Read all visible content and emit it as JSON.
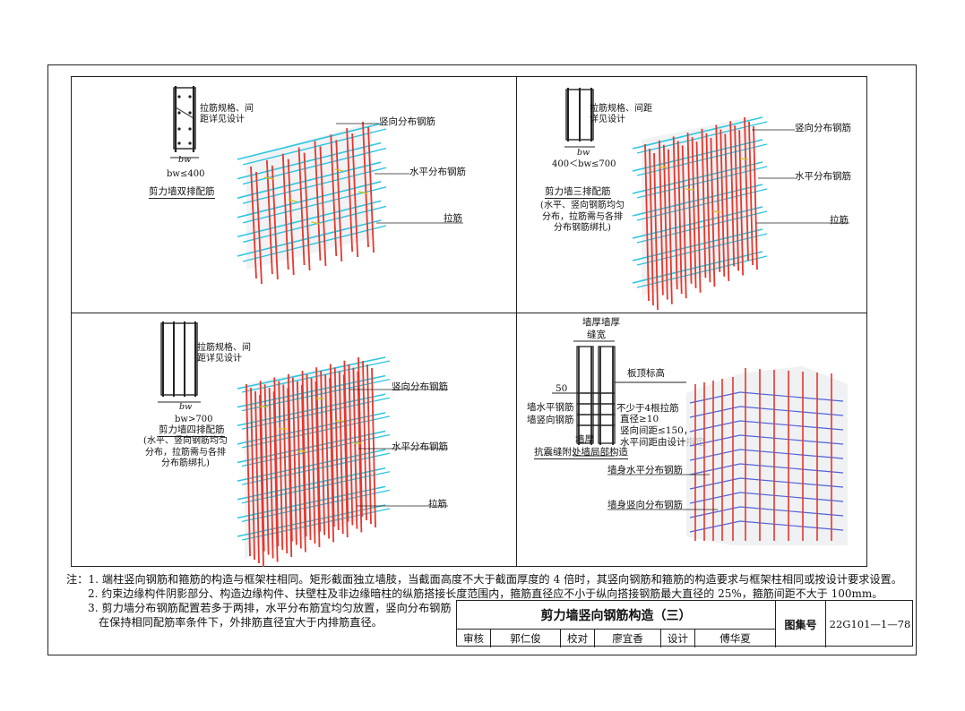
{
  "panels": {
    "p1": {
      "detail_note": "拉筋规格、间距详见设计",
      "width_label": "bw",
      "width_rule": "bw≤400",
      "caption": "剪力墙双排配筋",
      "labels": {
        "vertical": "竖向分布钢筋",
        "horizontal": "水平分布钢筋",
        "tie": "拉筋"
      }
    },
    "p2": {
      "detail_note": "拉筋规格、间距详见设计",
      "width_label": "bw",
      "width_rule": "400＜bw≤700",
      "caption": "剪力墙三排配筋",
      "caption_note": "(水平、竖向钢筋均匀分布，拉筋需与各排分布钢筋绑扎)",
      "labels": {
        "vertical": "竖向分布钢筋",
        "horizontal": "水平分布钢筋",
        "tie": "拉筋"
      }
    },
    "p3": {
      "detail_note": "拉筋规格、间距详见设计",
      "width_label": "bw",
      "width_rule": "bw>700",
      "caption": "剪力墙四排配筋",
      "caption_note": "(水平、竖向钢筋均匀分布，拉筋需与各排分布筋绑扎)",
      "labels": {
        "vertical": "竖向分布钢筋",
        "horizontal": "水平分布钢筋",
        "tie": "拉筋"
      }
    },
    "p4": {
      "thick_a": "墙厚",
      "thick_b": "墙厚",
      "gap": "缝宽",
      "dim_50": "50",
      "slab_top": "板顶标高",
      "wall_h_bar": "墙水平钢筋",
      "wall_v_bar": "墙竖向钢筋",
      "ties_note_1": "不少于4根拉筋",
      "ties_note_2": "直径≥10",
      "ties_note_3": "竖向间距≤150，",
      "ties_note_4": "水平间距由设计指定",
      "thick_bottom": "墙厚",
      "caption": "抗震缝附处墙局部构造",
      "body_h": "墙身水平分布钢筋",
      "body_v": "墙身竖向分布钢筋"
    }
  },
  "notes": {
    "prefix": "注：",
    "items": [
      "1. 端柱竖向钢筋和箍筋的构造与框架柱相同。矩形截面独立墙肢，当截面高度不大于截面厚度的 4 倍时，其竖向钢筋和箍筋的构造要求与框架柱相同或按设计要求设置。",
      "2. 约束边缘构件阴影部分、构造边缘构件、扶壁柱及非边缘暗柱的纵筋搭接长度范围内，箍筋直径应不小于纵向搭接钢筋最大直径的 25%，箍筋间距不大于 100mm。",
      "3. 剪力墙分布钢筋配置若多于两排，水平分布筋宜均匀放置，竖向分布钢筋",
      "在保持相同配筋率条件下，外排筋直径宜大于内排筋直径。"
    ]
  },
  "title_block": {
    "title": "剪力墙竖向钢筋构造（三）",
    "atlas_label": "图集号",
    "atlas_code": "22G101—1—78",
    "review_label": "审核",
    "reviewer": "郭仁俊",
    "check_label": "校对",
    "checker": "廖宜香",
    "design_label": "设计",
    "designer": "傅华夏"
  },
  "colors": {
    "vertical_bar": "#e8352b",
    "horizontal_bar": "#2cc6e0",
    "tie": "#d4c21a",
    "line": "#222222"
  }
}
